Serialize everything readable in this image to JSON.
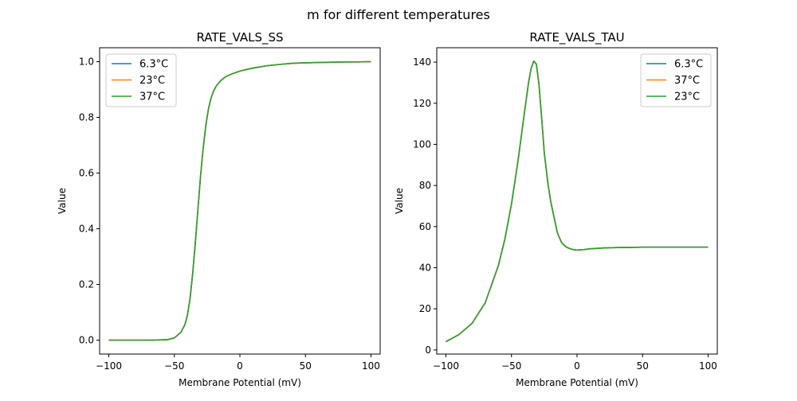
{
  "suptitle": "m for different temperatures",
  "chart_data": [
    {
      "type": "line",
      "title": "RATE_VALS_SS",
      "xlabel": "Membrane Potential (mV)",
      "ylabel": "Value",
      "xlim": [
        -107,
        107
      ],
      "ylim": [
        -0.05,
        1.05
      ],
      "xticks": [
        -100,
        -50,
        0,
        50,
        100
      ],
      "yticks": [
        0.0,
        0.2,
        0.4,
        0.6,
        0.8,
        1.0
      ],
      "xtick_labels": [
        "−100",
        "−50",
        "0",
        "50",
        "100"
      ],
      "ytick_labels": [
        "0.0",
        "0.2",
        "0.4",
        "0.6",
        "0.8",
        "1.0"
      ],
      "grid": false,
      "legend_position": "top-left",
      "series": [
        {
          "name": "6.3°C",
          "color": "#1f77b4",
          "x": [
            -100,
            -90,
            -80,
            -70,
            -60,
            -55,
            -50,
            -45,
            -42,
            -40,
            -38,
            -36,
            -34,
            -32,
            -30,
            -28,
            -26,
            -24,
            -22,
            -20,
            -18,
            -15,
            -12,
            -10,
            -5,
            0,
            5,
            10,
            15,
            20,
            30,
            40,
            50,
            60,
            70,
            80,
            90,
            100
          ],
          "y": [
            0.0,
            0.0,
            0.0,
            0.0,
            0.001,
            0.002,
            0.008,
            0.028,
            0.055,
            0.09,
            0.15,
            0.24,
            0.35,
            0.47,
            0.59,
            0.69,
            0.77,
            0.83,
            0.87,
            0.895,
            0.913,
            0.93,
            0.942,
            0.948,
            0.958,
            0.966,
            0.972,
            0.977,
            0.981,
            0.985,
            0.99,
            0.994,
            0.996,
            0.997,
            0.998,
            0.999,
            0.999,
            1.0
          ]
        },
        {
          "name": "23°C",
          "color": "#ff7f0e",
          "x": [
            -100,
            -90,
            -80,
            -70,
            -60,
            -55,
            -50,
            -45,
            -42,
            -40,
            -38,
            -36,
            -34,
            -32,
            -30,
            -28,
            -26,
            -24,
            -22,
            -20,
            -18,
            -15,
            -12,
            -10,
            -5,
            0,
            5,
            10,
            15,
            20,
            30,
            40,
            50,
            60,
            70,
            80,
            90,
            100
          ],
          "y": [
            0.0,
            0.0,
            0.0,
            0.0,
            0.001,
            0.002,
            0.008,
            0.028,
            0.055,
            0.09,
            0.15,
            0.24,
            0.35,
            0.47,
            0.59,
            0.69,
            0.77,
            0.83,
            0.87,
            0.895,
            0.913,
            0.93,
            0.942,
            0.948,
            0.958,
            0.966,
            0.972,
            0.977,
            0.981,
            0.985,
            0.99,
            0.994,
            0.996,
            0.997,
            0.998,
            0.999,
            0.999,
            1.0
          ]
        },
        {
          "name": "37°C",
          "color": "#2ca02c",
          "x": [
            -100,
            -90,
            -80,
            -70,
            -60,
            -55,
            -50,
            -45,
            -42,
            -40,
            -38,
            -36,
            -34,
            -32,
            -30,
            -28,
            -26,
            -24,
            -22,
            -20,
            -18,
            -15,
            -12,
            -10,
            -5,
            0,
            5,
            10,
            15,
            20,
            30,
            40,
            50,
            60,
            70,
            80,
            90,
            100
          ],
          "y": [
            0.0,
            0.0,
            0.0,
            0.0,
            0.001,
            0.002,
            0.008,
            0.028,
            0.055,
            0.09,
            0.15,
            0.24,
            0.35,
            0.47,
            0.59,
            0.69,
            0.77,
            0.83,
            0.87,
            0.895,
            0.913,
            0.93,
            0.942,
            0.948,
            0.958,
            0.966,
            0.972,
            0.977,
            0.981,
            0.985,
            0.99,
            0.994,
            0.996,
            0.997,
            0.998,
            0.999,
            0.999,
            1.0
          ]
        }
      ]
    },
    {
      "type": "line",
      "title": "RATE_VALS_TAU",
      "xlabel": "Membrane Potential (mV)",
      "ylabel": "Value",
      "xlim": [
        -107,
        107
      ],
      "ylim": [
        -2,
        147
      ],
      "xticks": [
        -100,
        -50,
        0,
        50,
        100
      ],
      "yticks": [
        0,
        20,
        40,
        60,
        80,
        100,
        120,
        140
      ],
      "xtick_labels": [
        "−100",
        "−50",
        "0",
        "50",
        "100"
      ],
      "ytick_labels": [
        "0",
        "20",
        "40",
        "60",
        "80",
        "100",
        "120",
        "140"
      ],
      "grid": false,
      "legend_position": "top-right",
      "series": [
        {
          "name": "6.3°C",
          "color": "#1f77b4",
          "x": [
            -100,
            -90,
            -80,
            -70,
            -60,
            -55,
            -50,
            -45,
            -40,
            -37,
            -35,
            -33,
            -31,
            -29,
            -27,
            -25,
            -22,
            -20,
            -17,
            -15,
            -12,
            -10,
            -8,
            -5,
            -3,
            0,
            5,
            10,
            20,
            30,
            50,
            70,
            100
          ],
          "y": [
            4,
            7.5,
            13,
            23,
            41,
            54,
            71,
            92,
            116,
            130,
            137,
            140.5,
            139,
            129,
            113,
            96,
            80,
            72,
            63,
            57,
            52.5,
            51,
            50,
            49.2,
            48.8,
            48.6,
            48.8,
            49.2,
            49.6,
            49.8,
            50,
            50,
            50
          ]
        },
        {
          "name": "37°C",
          "color": "#ff7f0e",
          "x": [
            -100,
            -90,
            -80,
            -70,
            -60,
            -55,
            -50,
            -45,
            -40,
            -37,
            -35,
            -33,
            -31,
            -29,
            -27,
            -25,
            -22,
            -20,
            -17,
            -15,
            -12,
            -10,
            -8,
            -5,
            -3,
            0,
            5,
            10,
            20,
            30,
            50,
            70,
            100
          ],
          "y": [
            4,
            7.5,
            13,
            23,
            41,
            54,
            71,
            92,
            116,
            130,
            137,
            140.5,
            139,
            129,
            113,
            96,
            80,
            72,
            63,
            57,
            52.5,
            51,
            50,
            49.2,
            48.8,
            48.6,
            48.8,
            49.2,
            49.6,
            49.8,
            50,
            50,
            50
          ]
        },
        {
          "name": "23°C",
          "color": "#2ca02c",
          "x": [
            -100,
            -90,
            -80,
            -70,
            -60,
            -55,
            -50,
            -45,
            -40,
            -37,
            -35,
            -33,
            -31,
            -29,
            -27,
            -25,
            -22,
            -20,
            -17,
            -15,
            -12,
            -10,
            -8,
            -5,
            -3,
            0,
            5,
            10,
            20,
            30,
            50,
            70,
            100
          ],
          "y": [
            4,
            7.5,
            13,
            23,
            41,
            54,
            71,
            92,
            116,
            130,
            137,
            140.5,
            139,
            129,
            113,
            96,
            80,
            72,
            63,
            57,
            52.5,
            51,
            50,
            49.2,
            48.8,
            48.6,
            48.8,
            49.2,
            49.6,
            49.8,
            50,
            50,
            50
          ]
        }
      ]
    }
  ]
}
